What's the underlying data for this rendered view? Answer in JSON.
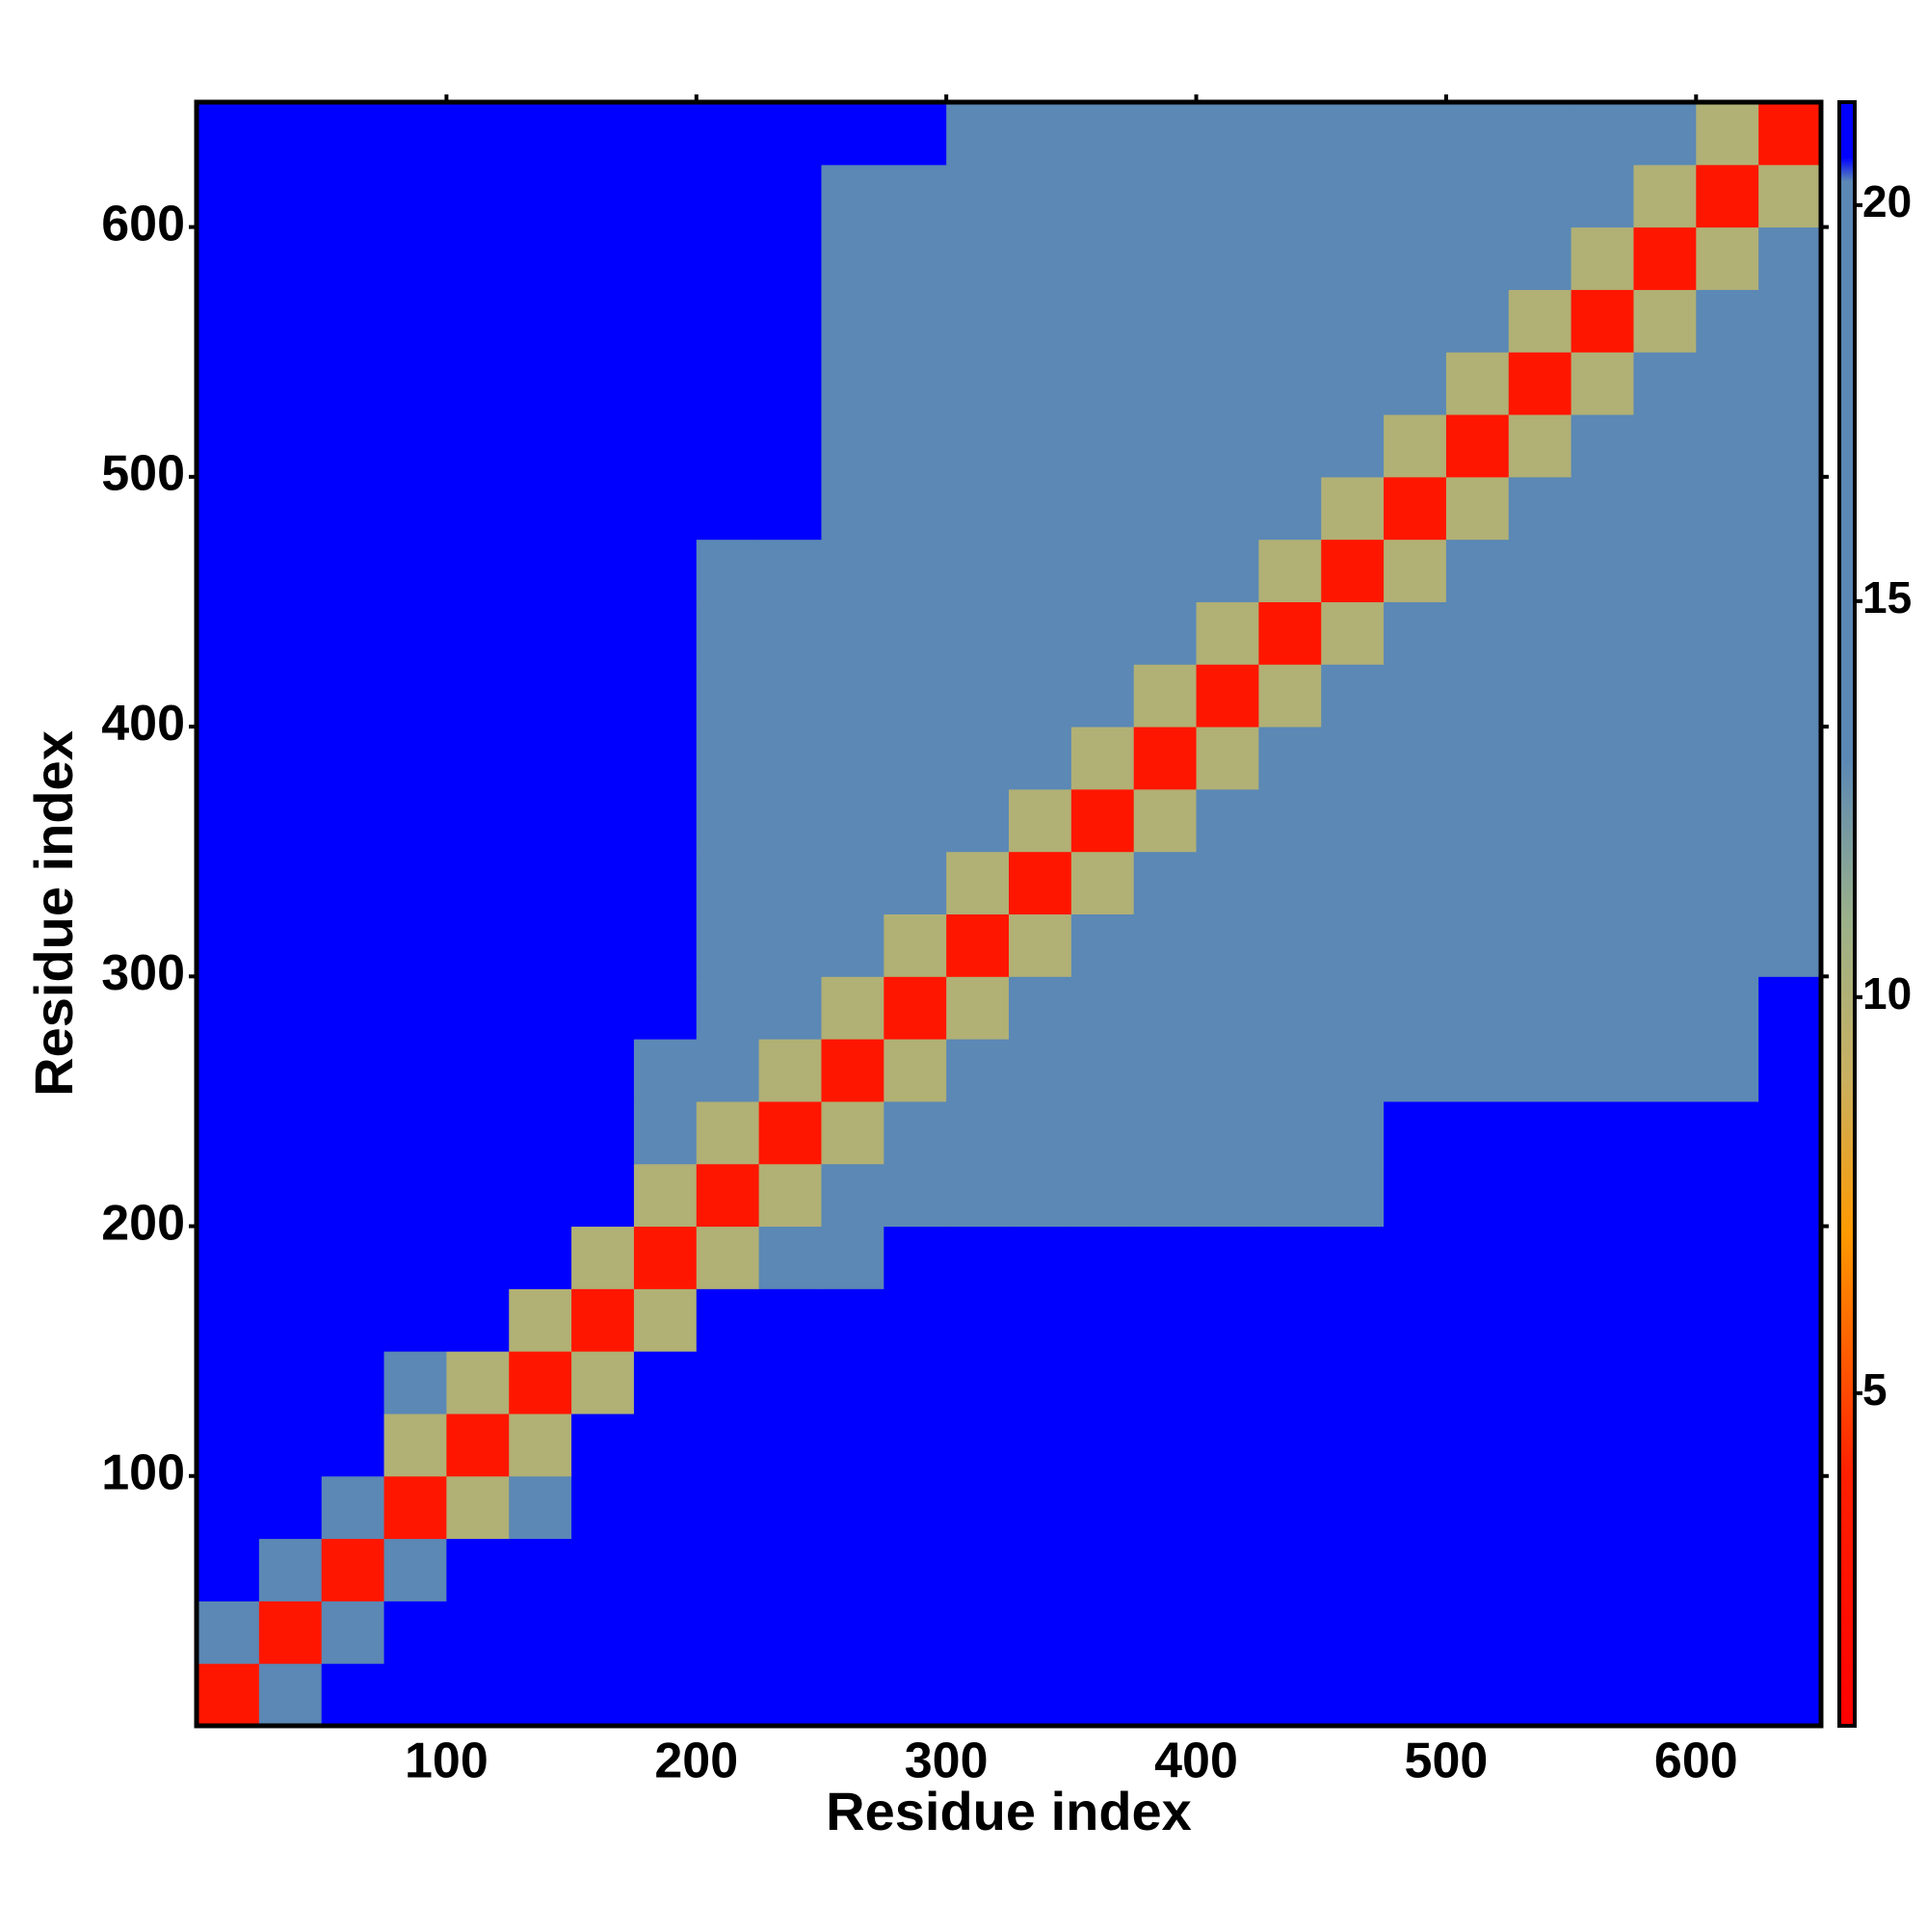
{
  "chart_data": {
    "type": "heatmap",
    "x_label": "Residue index",
    "y_label": "Residue index",
    "xlim": [
      0,
      650
    ],
    "ylim": [
      0,
      650
    ],
    "xticks": [
      100,
      200,
      300,
      400,
      500,
      600
    ],
    "yticks": [
      100,
      200,
      300,
      400,
      500,
      600
    ],
    "x": [
      0,
      25,
      50,
      75,
      100,
      125,
      150,
      175,
      200,
      225,
      250,
      275,
      300,
      325,
      350,
      375,
      400,
      425,
      450,
      475,
      500,
      525,
      550,
      575,
      600,
      625,
      650
    ],
    "y": [
      0,
      25,
      50,
      75,
      100,
      125,
      150,
      175,
      200,
      225,
      250,
      275,
      300,
      325,
      350,
      375,
      400,
      425,
      450,
      475,
      500,
      525,
      550,
      575,
      600,
      625,
      650
    ],
    "z": [
      [
        3,
        19,
        21,
        21,
        21,
        21,
        21,
        21,
        21,
        21,
        21,
        21,
        21,
        21,
        21,
        21,
        21,
        21,
        21,
        21,
        21,
        21,
        21,
        21,
        21,
        21
      ],
      [
        19,
        3,
        19,
        21,
        21,
        21,
        21,
        21,
        21,
        21,
        21,
        21,
        21,
        21,
        21,
        21,
        21,
        21,
        21,
        21,
        21,
        21,
        21,
        21,
        21,
        21
      ],
      [
        21,
        19,
        3,
        19,
        21,
        21,
        21,
        21,
        21,
        21,
        21,
        21,
        21,
        21,
        21,
        21,
        21,
        21,
        21,
        21,
        21,
        21,
        21,
        21,
        21,
        21
      ],
      [
        21,
        21,
        19,
        3,
        10,
        15,
        21,
        21,
        21,
        21,
        21,
        21,
        21,
        21,
        21,
        21,
        21,
        21,
        21,
        21,
        21,
        21,
        21,
        21,
        21,
        21
      ],
      [
        21,
        21,
        21,
        10,
        3,
        10,
        21,
        21,
        21,
        21,
        21,
        21,
        21,
        21,
        21,
        21,
        21,
        21,
        21,
        21,
        21,
        21,
        21,
        21,
        21,
        21
      ],
      [
        21,
        21,
        21,
        15,
        10,
        3,
        10,
        21,
        21,
        21,
        21,
        21,
        21,
        21,
        21,
        21,
        21,
        21,
        21,
        21,
        21,
        21,
        21,
        21,
        21,
        21
      ],
      [
        21,
        21,
        21,
        21,
        21,
        10,
        3,
        10,
        21,
        21,
        21,
        21,
        21,
        21,
        21,
        21,
        21,
        21,
        21,
        21,
        21,
        21,
        21,
        21,
        21,
        21
      ],
      [
        21,
        21,
        21,
        21,
        21,
        21,
        10,
        3,
        10,
        17,
        17,
        21,
        21,
        21,
        21,
        21,
        21,
        21,
        21,
        21,
        21,
        21,
        21,
        21,
        21,
        21
      ],
      [
        21,
        21,
        21,
        21,
        21,
        21,
        21,
        10,
        3,
        10,
        16,
        16,
        16,
        16,
        16,
        16,
        16,
        16,
        16,
        21,
        21,
        21,
        21,
        21,
        21,
        21
      ],
      [
        21,
        21,
        21,
        21,
        21,
        21,
        21,
        17,
        10,
        3,
        10,
        16,
        16,
        16,
        16,
        16,
        16,
        16,
        16,
        21,
        21,
        21,
        21,
        21,
        21,
        21
      ],
      [
        21,
        21,
        21,
        21,
        21,
        21,
        21,
        17,
        16,
        10,
        3,
        10,
        16,
        16,
        16,
        16,
        16,
        16,
        16,
        19,
        19,
        19,
        19,
        19,
        19,
        21
      ],
      [
        21,
        21,
        21,
        21,
        21,
        21,
        21,
        21,
        16,
        16,
        10,
        3,
        10,
        16,
        16,
        16,
        16,
        16,
        16,
        19,
        19,
        19,
        19,
        19,
        19,
        21
      ],
      [
        21,
        21,
        21,
        21,
        21,
        21,
        21,
        21,
        16,
        16,
        16,
        10,
        3,
        10,
        16,
        16,
        16,
        16,
        16,
        16,
        16,
        16,
        16,
        16,
        16,
        16
      ],
      [
        21,
        21,
        21,
        21,
        21,
        21,
        21,
        21,
        16,
        16,
        16,
        16,
        10,
        3,
        10,
        16,
        16,
        16,
        16,
        16,
        16,
        16,
        16,
        16,
        16,
        16
      ],
      [
        21,
        21,
        21,
        21,
        21,
        21,
        21,
        21,
        16,
        16,
        16,
        16,
        16,
        10,
        3,
        10,
        16,
        16,
        16,
        16,
        16,
        16,
        16,
        16,
        16,
        16
      ],
      [
        21,
        21,
        21,
        21,
        21,
        21,
        21,
        21,
        16,
        16,
        16,
        16,
        16,
        16,
        10,
        3,
        10,
        16,
        16,
        16,
        16,
        16,
        16,
        16,
        16,
        16
      ],
      [
        21,
        21,
        21,
        21,
        21,
        21,
        21,
        21,
        16,
        16,
        16,
        16,
        16,
        16,
        16,
        10,
        3,
        10,
        16,
        16,
        16,
        16,
        16,
        16,
        16,
        16
      ],
      [
        21,
        21,
        21,
        21,
        21,
        21,
        21,
        21,
        16,
        16,
        16,
        16,
        16,
        16,
        16,
        16,
        10,
        3,
        10,
        16,
        16,
        16,
        16,
        16,
        16,
        16
      ],
      [
        21,
        21,
        21,
        21,
        21,
        21,
        21,
        21,
        16,
        16,
        16,
        16,
        16,
        16,
        16,
        16,
        16,
        10,
        3,
        10,
        16,
        16,
        16,
        16,
        16,
        16
      ],
      [
        21,
        21,
        21,
        21,
        21,
        21,
        21,
        21,
        21,
        21,
        19,
        19,
        16,
        16,
        16,
        16,
        16,
        16,
        10,
        3,
        10,
        16,
        16,
        16,
        16,
        16
      ],
      [
        21,
        21,
        21,
        21,
        21,
        21,
        21,
        21,
        21,
        21,
        19,
        19,
        16,
        16,
        16,
        16,
        16,
        16,
        16,
        10,
        3,
        10,
        16,
        16,
        16,
        16
      ],
      [
        21,
        21,
        21,
        21,
        21,
        21,
        21,
        21,
        21,
        21,
        19,
        19,
        16,
        16,
        16,
        16,
        16,
        16,
        16,
        16,
        10,
        3,
        10,
        16,
        16,
        16
      ],
      [
        21,
        21,
        21,
        21,
        21,
        21,
        21,
        21,
        21,
        21,
        19,
        19,
        16,
        16,
        16,
        16,
        16,
        16,
        16,
        16,
        16,
        10,
        3,
        10,
        16,
        16
      ],
      [
        21,
        21,
        21,
        21,
        21,
        21,
        21,
        21,
        21,
        21,
        19,
        19,
        16,
        16,
        16,
        16,
        16,
        16,
        16,
        16,
        16,
        16,
        10,
        3,
        10,
        16
      ],
      [
        21,
        21,
        21,
        21,
        21,
        21,
        21,
        21,
        21,
        21,
        19,
        19,
        16,
        16,
        16,
        16,
        16,
        16,
        16,
        16,
        16,
        16,
        16,
        10,
        3,
        10
      ],
      [
        21,
        21,
        21,
        21,
        21,
        21,
        21,
        21,
        21,
        21,
        21,
        21,
        16,
        16,
        16,
        16,
        16,
        16,
        16,
        16,
        16,
        16,
        16,
        16,
        10,
        3
      ]
    ],
    "zlim": [
      0.8,
      21.3
    ],
    "zticks": [
      5,
      10,
      15,
      20
    ],
    "colorscale": [
      [
        0.8,
        "#ff0000"
      ],
      [
        4,
        "#ff2000"
      ],
      [
        7,
        "#ff9900"
      ],
      [
        9,
        "#c8b060"
      ],
      [
        11,
        "#9ab08a"
      ],
      [
        13,
        "#5b88b5"
      ],
      [
        20.3,
        "#5b88b5"
      ],
      [
        20.6,
        "#0000ff"
      ],
      [
        21.3,
        "#0000ff"
      ]
    ]
  }
}
